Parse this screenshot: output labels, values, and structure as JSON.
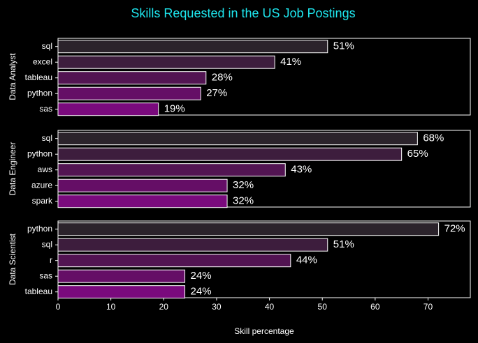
{
  "chart_data": {
    "type": "bar",
    "orientation": "horizontal",
    "title": "Skills Requested in the US Job Postings",
    "xlabel": "Skill percentage",
    "xlim": [
      0,
      78
    ],
    "xticks": [
      0,
      10,
      20,
      30,
      40,
      50,
      60,
      70
    ],
    "value_suffix": "%",
    "grid": false,
    "colors": {
      "background": "#000000",
      "title": "#1ee6ee",
      "text": "#ffffff",
      "bar_edge": "#ffffff",
      "bar_gradient": [
        "#2b232b",
        "#3d1d3d",
        "#521452",
        "#650e66",
        "#7a0a7d"
      ]
    },
    "panels": [
      {
        "ylabel": "Data Analyst",
        "categories": [
          "sql",
          "excel",
          "tableau",
          "python",
          "sas"
        ],
        "values": [
          51,
          41,
          28,
          27,
          19
        ]
      },
      {
        "ylabel": "Data Engineer",
        "categories": [
          "sql",
          "python",
          "aws",
          "azure",
          "spark"
        ],
        "values": [
          68,
          65,
          43,
          32,
          32
        ]
      },
      {
        "ylabel": "Data Scientist",
        "categories": [
          "python",
          "sql",
          "r",
          "sas",
          "tableau"
        ],
        "values": [
          72,
          51,
          44,
          24,
          24
        ]
      }
    ]
  }
}
